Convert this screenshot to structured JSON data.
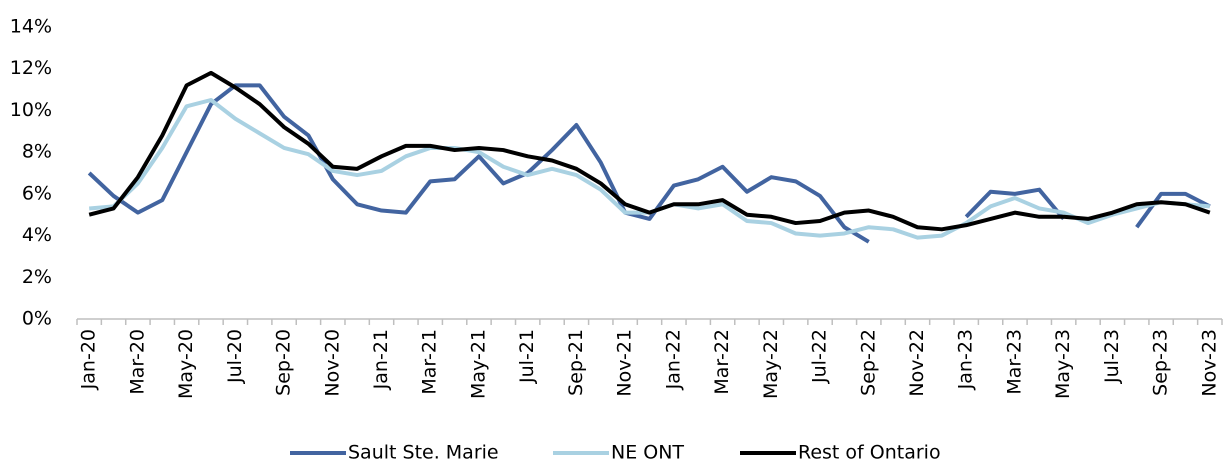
{
  "chart_data": {
    "type": "line",
    "categories": [
      "Jan-20",
      null,
      "Mar-20",
      null,
      "May-20",
      null,
      "Jul-20",
      null,
      "Sep-20",
      null,
      "Nov-20",
      null,
      "Jan-21",
      null,
      "Mar-21",
      null,
      "May-21",
      null,
      "Jul-21",
      null,
      "Sep-21",
      null,
      "Nov-21",
      null,
      "Jan-22",
      null,
      "Mar-22",
      null,
      "May-22",
      null,
      "Jul-22",
      null,
      "Sep-22",
      null,
      "Nov-22",
      null,
      "Jan-23",
      null,
      "Mar-23",
      null,
      "May-23",
      null,
      "Jul-23",
      null,
      "Sep-23",
      null,
      "Nov-23"
    ],
    "series": [
      {
        "name": "Sault Ste. Marie",
        "color": "#4264a0",
        "values": [
          7.0,
          5.9,
          5.1,
          5.7,
          8.0,
          10.3,
          11.2,
          11.2,
          9.7,
          8.8,
          6.7,
          5.5,
          5.2,
          5.1,
          6.6,
          6.7,
          7.8,
          6.5,
          7.0,
          8.1,
          9.3,
          7.5,
          5.1,
          4.8,
          6.4,
          6.7,
          7.3,
          6.1,
          6.8,
          6.6,
          5.9,
          4.4,
          3.7,
          null,
          null,
          null,
          4.9,
          6.1,
          6.0,
          6.2,
          4.8,
          null,
          null,
          4.4,
          6.0,
          6.0,
          5.4
        ]
      },
      {
        "name": "NE ONT",
        "color": "#a9d1e2",
        "values": [
          5.3,
          5.4,
          6.5,
          8.2,
          10.2,
          10.5,
          9.6,
          8.9,
          8.2,
          7.9,
          7.1,
          6.9,
          7.1,
          7.8,
          8.2,
          8.2,
          8.0,
          7.3,
          6.9,
          7.2,
          6.9,
          6.2,
          5.1,
          5.1,
          5.5,
          5.3,
          5.5,
          4.7,
          4.6,
          4.1,
          4.0,
          4.1,
          4.4,
          4.3,
          3.9,
          4.0,
          4.6,
          5.4,
          5.8,
          5.3,
          5.1,
          4.6,
          5.0,
          5.3,
          5.6,
          5.5,
          5.4
        ]
      },
      {
        "name": "Rest of Ontario",
        "color": "#000000",
        "values": [
          5.0,
          5.3,
          6.8,
          8.8,
          11.2,
          11.8,
          11.1,
          10.3,
          9.2,
          8.4,
          7.3,
          7.2,
          7.8,
          8.3,
          8.3,
          8.1,
          8.2,
          8.1,
          7.8,
          7.6,
          7.2,
          6.5,
          5.5,
          5.1,
          5.5,
          5.5,
          5.7,
          5.0,
          4.9,
          4.6,
          4.7,
          5.1,
          5.2,
          4.9,
          4.4,
          4.3,
          4.5,
          4.8,
          5.1,
          4.9,
          4.9,
          4.8,
          5.1,
          5.5,
          5.6,
          5.5,
          5.1
        ]
      }
    ],
    "ylim": [
      0,
      14
    ],
    "yticks": [
      {
        "value": 0,
        "label": "0%"
      },
      {
        "value": 2,
        "label": "2%"
      },
      {
        "value": 4,
        "label": "4%"
      },
      {
        "value": 6,
        "label": "6%"
      },
      {
        "value": 8,
        "label": "8%"
      },
      {
        "value": 10,
        "label": "10%"
      },
      {
        "value": 12,
        "label": "12%"
      },
      {
        "value": 14,
        "label": "14%"
      }
    ],
    "grid": false,
    "legend": "bottom"
  }
}
